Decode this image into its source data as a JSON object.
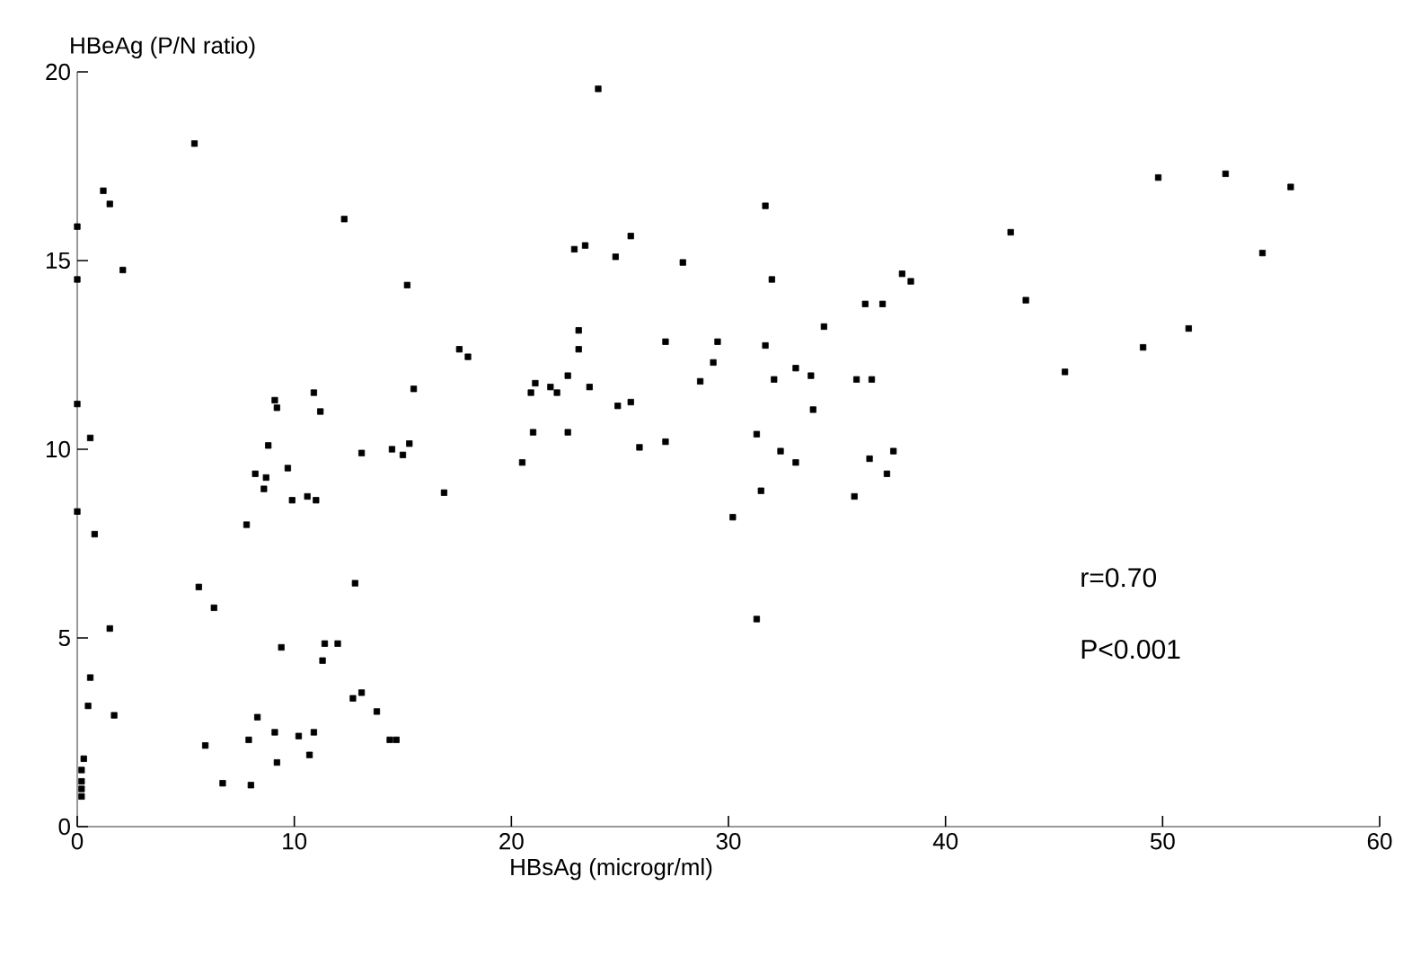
{
  "chart_data": {
    "type": "scatter",
    "xlabel": "HBsAg (microgr/ml)",
    "ylabel": "HBeAg (P/N ratio)",
    "xlim": [
      0,
      60
    ],
    "xticks": [
      0,
      10,
      20,
      30,
      40,
      50,
      60
    ],
    "ylim": [
      0,
      20
    ],
    "yticks": [
      0,
      5,
      10,
      15,
      20
    ],
    "marker": "square",
    "annotations": [
      "r=0.70",
      "P<0.001"
    ],
    "x": [
      0,
      0,
      0,
      0,
      0.6,
      0.8,
      1.2,
      1.5,
      2.1,
      1.5,
      0.6,
      0.5,
      1.7,
      0.3,
      0.2,
      0.2,
      0.2,
      0.2,
      5.4,
      12.3,
      15.2,
      15.5,
      10.9,
      11.2,
      9.1,
      9.2,
      8.8,
      13.1,
      14.5,
      15.0,
      15.3,
      8.2,
      8.7,
      8.6,
      9.7,
      9.9,
      10.6,
      11.0,
      7.8,
      5.6,
      6.3,
      12.8,
      9.4,
      11.4,
      12.0,
      11.3,
      12.7,
      13.1,
      13.8,
      14.4,
      14.7,
      8.3,
      5.9,
      7.9,
      9.1,
      10.2,
      10.9,
      10.7,
      9.2,
      6.7,
      8.0,
      24.0,
      25.5,
      22.9,
      23.4,
      24.8,
      27.9,
      23.1,
      23.1,
      27.1,
      29.5,
      29.3,
      28.7,
      17.6,
      18.0,
      21.1,
      20.9,
      21.8,
      22.1,
      22.6,
      23.6,
      24.9,
      25.5,
      21.0,
      22.6,
      20.5,
      25.9,
      27.1,
      16.9,
      49.8,
      52.9,
      55.9,
      54.6,
      51.2,
      49.1,
      45.5,
      43.7,
      43.0,
      31.7,
      32.0,
      38.0,
      38.4,
      36.3,
      37.1,
      34.4,
      31.7,
      33.1,
      32.1,
      33.8,
      35.9,
      36.6,
      33.9,
      31.3,
      32.4,
      33.1,
      36.5,
      37.6,
      37.3,
      31.5,
      35.8,
      30.2,
      31.3
    ],
    "series": [
      {
        "color": "#000000",
        "values": [
          15.9,
          14.5,
          11.2,
          8.35,
          10.3,
          7.75,
          16.85,
          16.5,
          14.75,
          5.25,
          3.95,
          3.2,
          2.95,
          1.8,
          1.5,
          1.2,
          1.0,
          0.8,
          18.1,
          16.1,
          14.35,
          11.6,
          11.5,
          11.0,
          11.3,
          11.1,
          10.1,
          9.9,
          10.0,
          9.85,
          10.15,
          9.35,
          9.25,
          8.95,
          9.5,
          8.65,
          8.75,
          8.65,
          8.0,
          6.35,
          5.8,
          6.45,
          4.75,
          4.85,
          4.85,
          4.4,
          3.4,
          3.55,
          3.05,
          2.3,
          2.3,
          2.9,
          2.15,
          2.3,
          2.5,
          2.4,
          2.5,
          1.9,
          1.7,
          1.15,
          1.1,
          19.55,
          15.65,
          15.3,
          15.4,
          15.1,
          14.95,
          13.15,
          12.65,
          12.85,
          12.85,
          12.3,
          11.8,
          12.65,
          12.45,
          11.75,
          11.5,
          11.65,
          11.5,
          11.95,
          11.65,
          11.15,
          11.25,
          10.45,
          10.45,
          9.65,
          10.05,
          10.2,
          8.85,
          17.2,
          17.3,
          16.95,
          15.2,
          13.2,
          12.7,
          12.05,
          13.95,
          15.75,
          16.45,
          14.5,
          14.65,
          14.45,
          13.85,
          13.85,
          13.25,
          12.75,
          12.15,
          11.85,
          11.95,
          11.85,
          11.85,
          11.05,
          10.4,
          9.95,
          9.65,
          9.75,
          9.95,
          9.35,
          8.9,
          8.75,
          8.2,
          5.5
        ]
      }
    ]
  }
}
